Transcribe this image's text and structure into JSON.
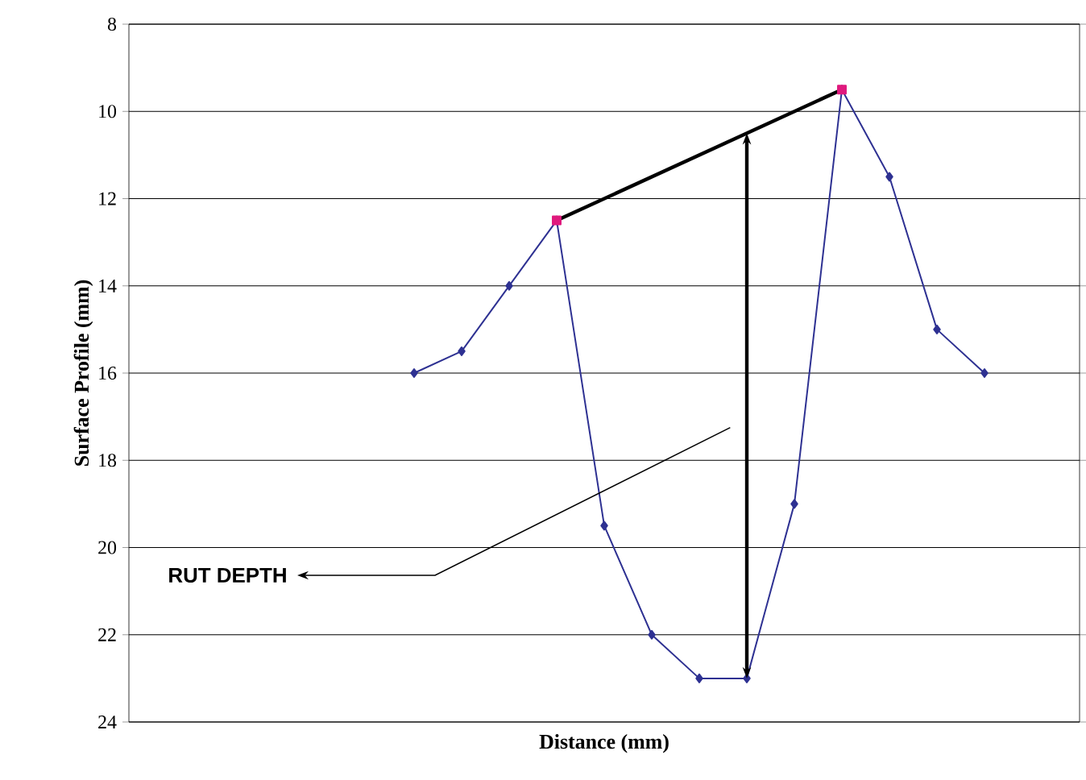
{
  "chart_data": {
    "type": "line",
    "xlabel": "Distance (mm)",
    "ylabel": "Surface Profile (mm)",
    "categories": [
      null,
      null,
      null,
      null,
      null,
      null,
      null,
      null,
      null,
      null,
      null,
      null,
      null,
      null,
      null,
      null,
      null,
      null,
      null,
      null,
      null
    ],
    "series": [
      {
        "color": "#2e3192",
        "marker": "diamond",
        "values": [
          null,
          null,
          null,
          null,
          null,
          null,
          16,
          15.5,
          14,
          12.5,
          19.5,
          22,
          23,
          23,
          19,
          9.5,
          11.5,
          15,
          16,
          null,
          null
        ]
      },
      {
        "color": "#000000",
        "marker": "none",
        "values": [
          null,
          null,
          null,
          null,
          null,
          null,
          null,
          null,
          null,
          12.5,
          null,
          null,
          null,
          null,
          null,
          9.5,
          null,
          null,
          null,
          null,
          null
        ]
      },
      {
        "type": "scatter",
        "color": "#e0197d",
        "marker": "square",
        "values": [
          null,
          null,
          null,
          null,
          null,
          null,
          null,
          null,
          null,
          12.5,
          null,
          null,
          null,
          null,
          null,
          9.5,
          null,
          null,
          null,
          null,
          null
        ]
      }
    ],
    "ylim": [
      24,
      8
    ],
    "yticks": [
      8,
      10,
      12,
      14,
      16,
      18,
      20,
      22,
      24
    ],
    "grid": "y",
    "tick_labels": "y",
    "annotations": [
      "RUT DEPTH"
    ]
  }
}
